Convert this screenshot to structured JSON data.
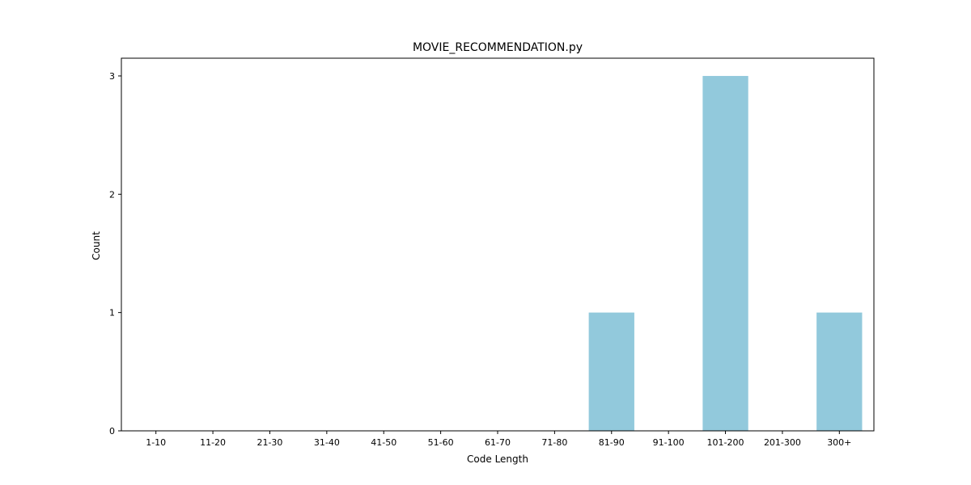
{
  "chart_data": {
    "type": "bar",
    "title": "MOVIE_RECOMMENDATION.py",
    "xlabel": "Code Length",
    "ylabel": "Count",
    "categories": [
      "1-10",
      "11-20",
      "21-30",
      "31-40",
      "41-50",
      "51-60",
      "61-70",
      "71-80",
      "81-90",
      "91-100",
      "101-200",
      "201-300",
      "300+"
    ],
    "values": [
      0,
      0,
      0,
      0,
      0,
      0,
      0,
      0,
      1,
      0,
      3,
      0,
      1
    ],
    "ylim": [
      0,
      3.15
    ],
    "yticks": [
      0,
      1,
      2,
      3
    ],
    "bar_color": "#92c9dc",
    "grid": false
  }
}
